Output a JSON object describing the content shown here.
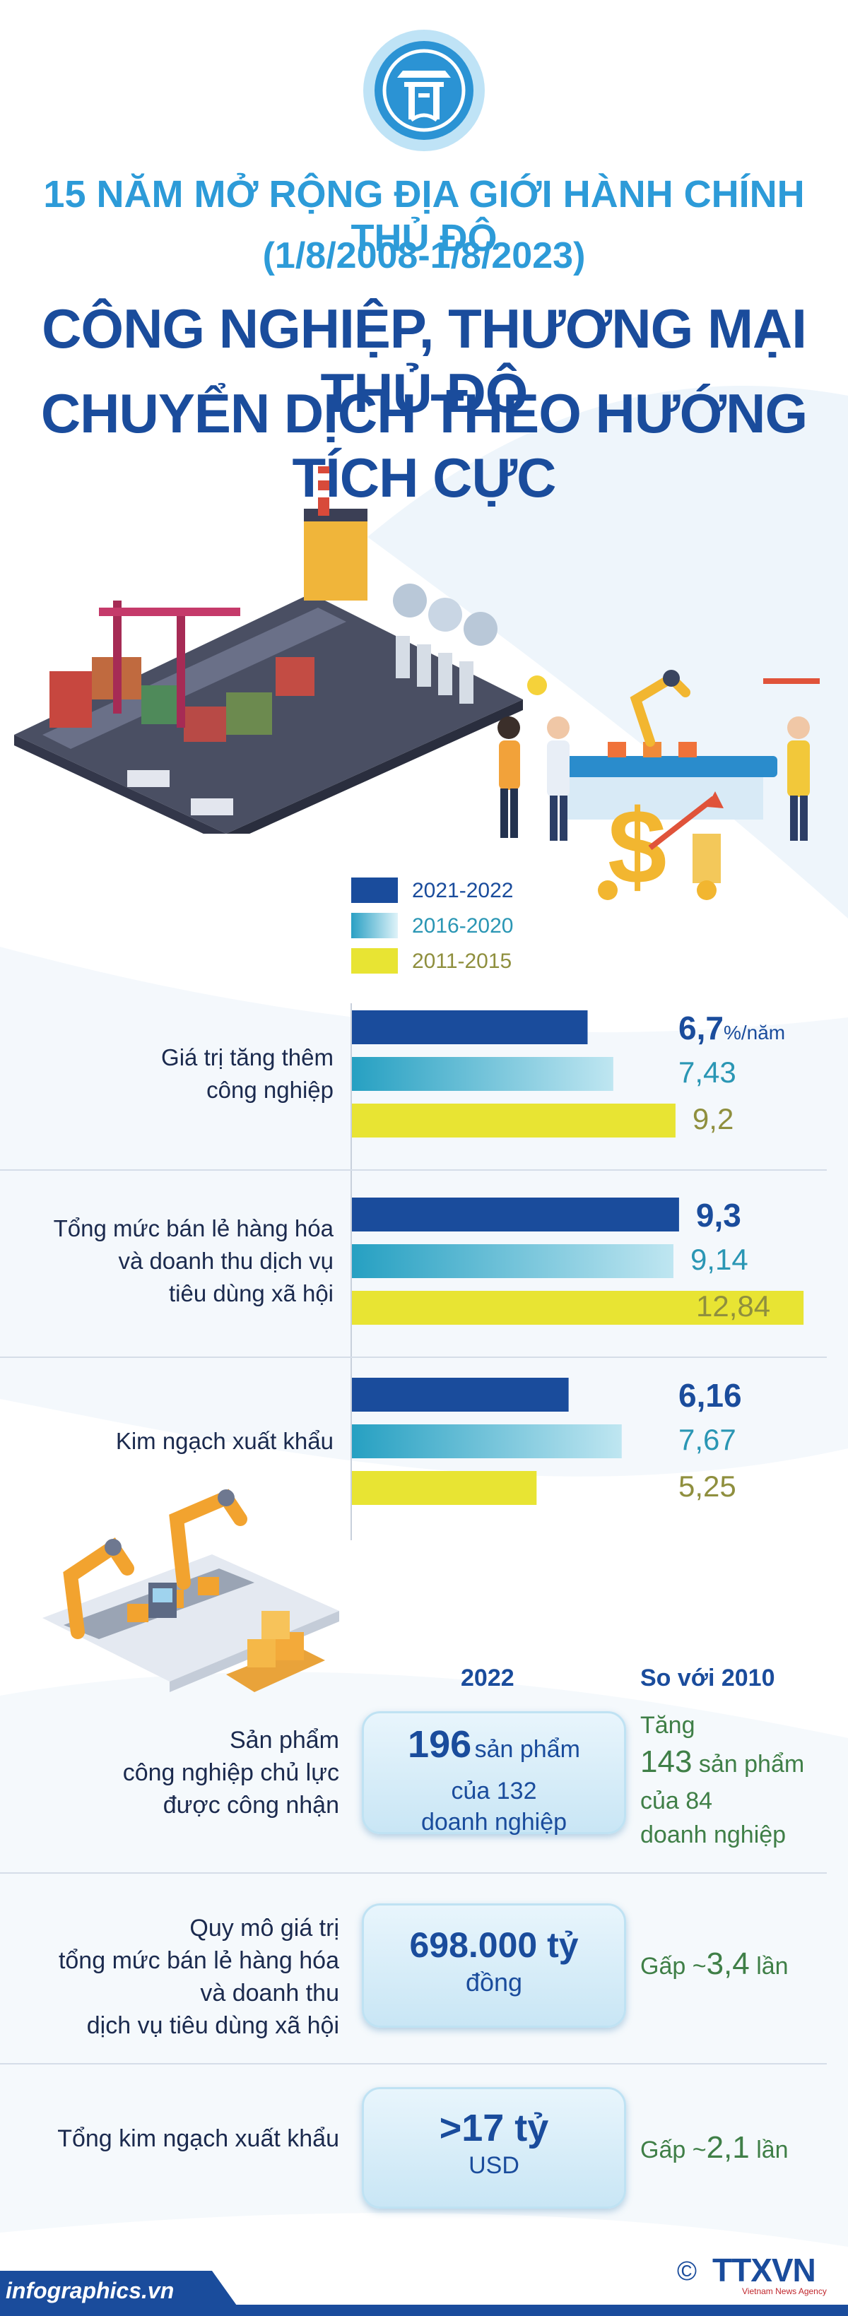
{
  "header": {
    "subtitle_line1": "15 NĂM MỞ RỘNG ĐỊA GIỚI HÀNH CHÍNH THỦ ĐÔ",
    "subtitle_line2": "(1/8/2008-1/8/2023)",
    "title_line1": "CÔNG NGHIỆP, THƯƠNG MẠI THỦ ĐÔ",
    "title_line2": "CHUYỂN DỊCH THEO HƯỚNG TÍCH CỰC"
  },
  "colors": {
    "navy": "#1a4c9c",
    "teal": "#2ba7c7",
    "yellow": "#e8e433",
    "olive_text": "#8f8f3e",
    "teal_text": "#2a96b4",
    "green_text": "#3f7f47"
  },
  "chart_data": {
    "type": "bar",
    "orientation": "horizontal",
    "unit": "%/năm",
    "categories": [
      "Giá trị tăng thêm công nghiệp",
      "Tổng mức bán lẻ hàng hóa và doanh thu dịch vụ tiêu dùng xã hội",
      "Kim ngạch xuất khẩu"
    ],
    "category_lines": [
      [
        "Giá trị tăng thêm",
        "công nghiệp"
      ],
      [
        "Tổng mức bán lẻ hàng hóa",
        "và doanh thu dịch vụ",
        "tiêu dùng xã hội"
      ],
      [
        "Kim ngạch xuất khẩu"
      ]
    ],
    "series": [
      {
        "name": "2021-2022",
        "values": [
          6.7,
          9.3,
          6.16
        ],
        "labels": [
          "6,7",
          "9,3",
          "6,16"
        ]
      },
      {
        "name": "2016-2020",
        "values": [
          7.43,
          9.14,
          7.67
        ],
        "labels": [
          "7,43",
          "9,14",
          "7,67"
        ]
      },
      {
        "name": "2011-2015",
        "values": [
          9.2,
          12.84,
          5.25
        ],
        "labels": [
          "9,2",
          "12,84",
          "5,25"
        ]
      }
    ],
    "xlim": [
      0,
      13.3
    ],
    "legend_position": "top"
  },
  "table": {
    "col_2022": "2022",
    "col_compare": "So với 2010",
    "rows": [
      {
        "label_lines": [
          "Sản phẩm",
          "công nghiệp chủ lực",
          "được công nhận"
        ],
        "main_value": "196",
        "main_unit": "sản phẩm",
        "main_sub1": "của 132",
        "main_sub2": "doanh nghiệp",
        "cmp_line1": "Tăng",
        "cmp_value": "143",
        "cmp_unit": "sản phẩm",
        "cmp_line3": "của 84",
        "cmp_line4": "doanh nghiệp"
      },
      {
        "label_lines": [
          "Quy mô giá trị",
          "tổng mức bán lẻ hàng hóa",
          "và doanh thu",
          "dịch vụ tiêu dùng xã hội"
        ],
        "main_value": "698.000 tỷ",
        "main_sub1": "đồng",
        "cmp_prefix": "Gấp ~",
        "cmp_value": "3,4",
        "cmp_suffix": "lần"
      },
      {
        "label_lines": [
          "Tổng kim ngạch xuất khẩu"
        ],
        "main_value": ">17 tỷ",
        "main_sub1": "USD",
        "cmp_prefix": "Gấp ~",
        "cmp_value": "2,1",
        "cmp_suffix": "lần"
      }
    ]
  },
  "footer": {
    "site": "infographics.vn",
    "copyright": "©",
    "brand": "TTXVN",
    "brand_sub": "Vietnam News Agency"
  }
}
